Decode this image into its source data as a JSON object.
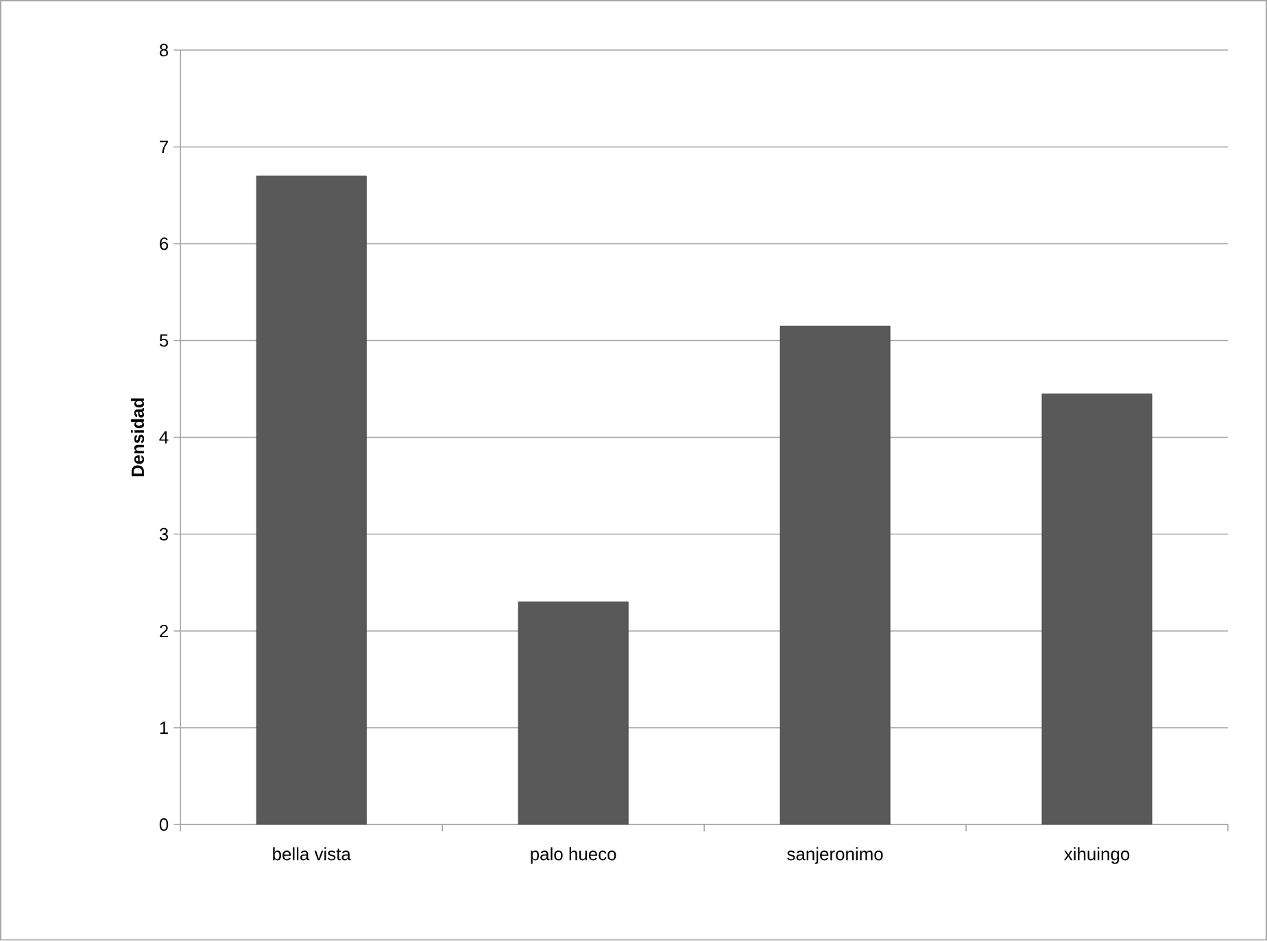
{
  "chart_data": {
    "type": "bar",
    "ylabel": "Densidad",
    "categories": [
      "bella vista",
      "palo hueco",
      "sanjeronimo",
      "xihuingo"
    ],
    "values": [
      6.7,
      2.3,
      5.15,
      4.45
    ],
    "color": "#595959",
    "ylim": [
      0,
      8
    ],
    "yticks": [
      0,
      1,
      2,
      3,
      4,
      5,
      6,
      7,
      8
    ],
    "grid": "y"
  }
}
